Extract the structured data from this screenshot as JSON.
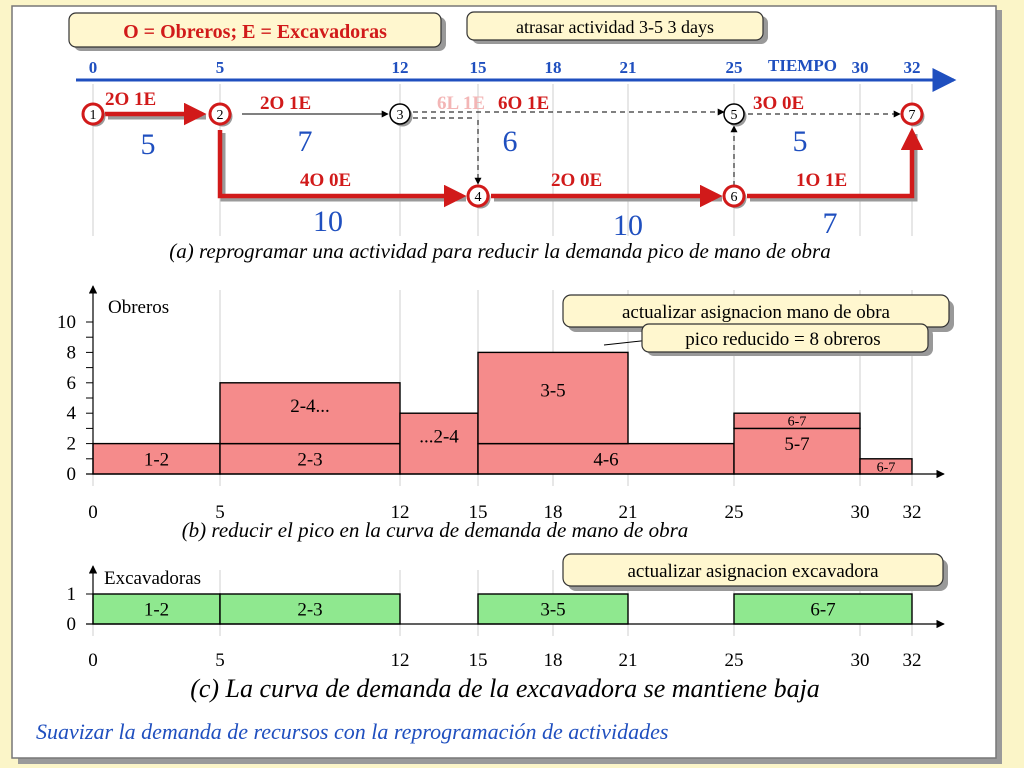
{
  "legend": "O = Obreros;  E = Excavadoras",
  "note_delay": "atrasar actividad 3-5 3 days",
  "axis_label": "TIEMPO",
  "time_ticks": [
    "0",
    "5",
    "12",
    "15",
    "18",
    "21",
    "25",
    "30",
    "32"
  ],
  "bottom_ticks": [
    "0",
    "5",
    "12",
    "15",
    "18",
    "21",
    "25",
    "30",
    "32"
  ],
  "nodes": [
    "1",
    "2",
    "3",
    "4",
    "5",
    "6",
    "7"
  ],
  "network_activities": [
    {
      "id": "1-2",
      "resources": "2O 1E",
      "duration": "5"
    },
    {
      "id": "2-3",
      "resources": "2O 1E",
      "duration": "7"
    },
    {
      "id": "3-5",
      "resources": "6O 1E",
      "duration": "6",
      "ghost": "6L 1E"
    },
    {
      "id": "5-7",
      "resources": "3O 0E",
      "duration": "5"
    },
    {
      "id": "2-4",
      "resources": "4O 0E",
      "duration": "10"
    },
    {
      "id": "4-6",
      "resources": "2O 0E",
      "duration": "10"
    },
    {
      "id": "6-7",
      "resources": "1O 1E",
      "duration": "7"
    }
  ],
  "caption_a": "(a) reprogramar una actividad para reducir la demanda pico de mano de obra",
  "labor_chart": {
    "ylabel": "Obreros",
    "yticks": [
      "0",
      "2",
      "4",
      "6",
      "8",
      "10"
    ],
    "note_update": "actualizar asignacion mano de obra",
    "note_peak": "pico reducido = 8 obreros",
    "blocks": [
      {
        "label": "1-2",
        "x0": 0,
        "x1": 5,
        "y0": 0,
        "y1": 2
      },
      {
        "label": "2-3",
        "x0": 5,
        "x1": 12,
        "y0": 0,
        "y1": 2
      },
      {
        "label": "2-4...",
        "x0": 5,
        "x1": 12,
        "y0": 2,
        "y1": 6
      },
      {
        "label": "...2-4",
        "x0": 12,
        "x1": 15,
        "y0": 0,
        "y1": 4
      },
      {
        "label": "4-6",
        "x0": 15,
        "x1": 25,
        "y0": 0,
        "y1": 2
      },
      {
        "label": "3-5",
        "x0": 15,
        "x1": 21,
        "y0": 2,
        "y1": 8
      },
      {
        "label": "5-7",
        "x0": 25,
        "x1": 30,
        "y0": 0,
        "y1": 3
      },
      {
        "label": "6-7",
        "x0": 25,
        "x1": 30,
        "y0": 3,
        "y1": 4
      },
      {
        "label": "6-7",
        "x0": 30,
        "x1": 32,
        "y0": 0,
        "y1": 1
      }
    ]
  },
  "caption_b": "(b) reducir el pico en la curva de demanda de mano de obra",
  "excavator_chart": {
    "ylabel": "Excavadoras",
    "yticks": [
      "0",
      "1"
    ],
    "note_update": "actualizar asignacion excavadora",
    "blocks": [
      {
        "label": "1-2",
        "x0": 0,
        "x1": 5,
        "y0": 0,
        "y1": 1
      },
      {
        "label": "2-3",
        "x0": 5,
        "x1": 12,
        "y0": 0,
        "y1": 1
      },
      {
        "label": "3-5",
        "x0": 15,
        "x1": 21,
        "y0": 0,
        "y1": 1
      },
      {
        "label": "6-7",
        "x0": 25,
        "x1": 32,
        "y0": 0,
        "y1": 1
      }
    ]
  },
  "caption_c": "(c) La curva de demanda de la excavadora se mantiene baja",
  "footer": "Suavizar la demanda de recursos con la reprogramación de actividades",
  "colors": {
    "page_bg": "#fbf5c8",
    "panel_bg": "#ffffff",
    "blue": "#1f4fbf",
    "red": "#d11a1a",
    "green_text": "#1f8f1f",
    "labor_fill": "#f58b8b",
    "excav_fill": "#8fe88f"
  }
}
